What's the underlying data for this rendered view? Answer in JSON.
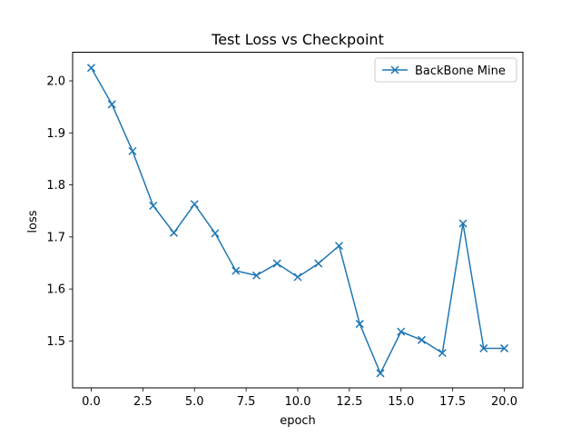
{
  "chart_data": {
    "type": "line",
    "title": "Test Loss vs Checkpoint",
    "xlabel": "epoch",
    "ylabel": "loss",
    "xlim": [
      -0.9,
      20.9
    ],
    "ylim": [
      1.41,
      2.055
    ],
    "xticks": [
      0.0,
      2.5,
      5.0,
      7.5,
      10.0,
      12.5,
      15.0,
      17.5,
      20.0
    ],
    "xtick_labels": [
      "0.0",
      "2.5",
      "5.0",
      "7.5",
      "10.0",
      "12.5",
      "15.0",
      "17.5",
      "20.0"
    ],
    "yticks": [
      1.5,
      1.6,
      1.7,
      1.8,
      1.9,
      2.0
    ],
    "ytick_labels": [
      "1.5",
      "1.6",
      "1.7",
      "1.8",
      "1.9",
      "2.0"
    ],
    "grid": false,
    "legend_position": "top-right",
    "series": [
      {
        "name": "BackBone Mine",
        "color": "#1f77b4",
        "marker": "x",
        "x": [
          0,
          1,
          2,
          3,
          4,
          5,
          6,
          7,
          8,
          9,
          10,
          11,
          12,
          13,
          14,
          15,
          16,
          17,
          18,
          19,
          20
        ],
        "y": [
          2.025,
          1.955,
          1.865,
          1.76,
          1.708,
          1.763,
          1.707,
          1.635,
          1.626,
          1.649,
          1.623,
          1.649,
          1.683,
          1.533,
          1.438,
          1.518,
          1.502,
          1.477,
          1.726,
          1.486,
          1.486
        ]
      }
    ]
  }
}
